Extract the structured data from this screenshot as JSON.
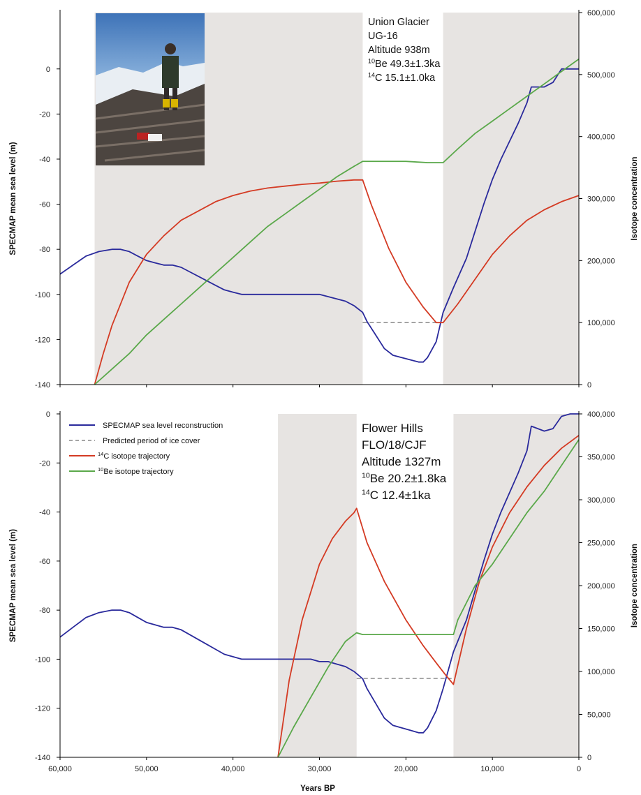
{
  "colors": {
    "sea_level": "#2a2a9c",
    "c14": "#d43b24",
    "be10": "#5aa84a",
    "ice_cover": "#888888",
    "shade": "#e7e4e2"
  },
  "photo": {
    "description_icon": "photo-icon"
  },
  "shared_x_label": "Years BP",
  "chart_data": [
    {
      "type": "line",
      "site": [
        "Union Glacier",
        "UG-16",
        "Altitude 938m"
      ],
      "be_label": "Be 49.3±1.3ka",
      "be_sup": "10",
      "c_label": "C 15.1±1.0ka",
      "c_sup": "14",
      "ylabel": "SPECMAP mean sea level (m)",
      "y2label": "Isotope concentration",
      "xlim": [
        60000,
        0
      ],
      "ylim": [
        -140,
        25
      ],
      "y2lim": [
        0,
        600000
      ],
      "xticks": [],
      "yticks": [
        "0",
        "-20",
        "-40",
        "-60",
        "-80",
        "-100",
        "-120",
        "-140"
      ],
      "ytick_values": [
        0,
        -20,
        -40,
        -60,
        -80,
        -100,
        -120,
        -140
      ],
      "y2ticks": [
        "600,000",
        "500,000",
        "400,000",
        "300,000",
        "200,000",
        "100,000",
        "0"
      ],
      "y2tick_values": [
        600000,
        500000,
        400000,
        300000,
        200000,
        100000,
        0
      ],
      "shaded": [
        [
          56000,
          25000
        ],
        [
          15700,
          0
        ]
      ],
      "ice_cover": {
        "x": [
          25000,
          15700
        ],
        "y": 100000
      },
      "series": [
        {
          "key": "sea_level",
          "axis": "left",
          "x": [
            60000,
            58500,
            57000,
            55500,
            54000,
            53000,
            52000,
            51000,
            50000,
            49000,
            48000,
            47000,
            46000,
            45000,
            44000,
            43000,
            42000,
            41000,
            40000,
            39000,
            38000,
            37000,
            36000,
            35000,
            34000,
            33000,
            32000,
            31000,
            30000,
            29000,
            28000,
            27000,
            26000,
            25000,
            24500,
            23500,
            22500,
            21500,
            20500,
            19500,
            18500,
            18000,
            17500,
            16500,
            15700,
            14500,
            13000,
            12000,
            11000,
            10000,
            9000,
            8000,
            7000,
            6000,
            5500,
            4000,
            3000,
            2000,
            1000,
            0
          ],
          "y": [
            -91,
            -87,
            -83,
            -81,
            -80,
            -80,
            -81,
            -83,
            -85,
            -86,
            -87,
            -87,
            -88,
            -90,
            -92,
            -94,
            -96,
            -98,
            -99,
            -100,
            -100,
            -100,
            -100,
            -100,
            -100,
            -100,
            -100,
            -100,
            -100,
            -101,
            -102,
            -103,
            -105,
            -108,
            -112,
            -118,
            -124,
            -127,
            -128,
            -129,
            -130,
            -130,
            -128,
            -121,
            -108,
            -97,
            -84,
            -72,
            -60,
            -49,
            -40,
            -32,
            -24,
            -15,
            -8,
            -8,
            -6,
            0,
            0,
            0
          ]
        },
        {
          "key": "c14",
          "axis": "right",
          "x": [
            56000,
            55000,
            54000,
            52000,
            50000,
            48000,
            46000,
            44000,
            42000,
            40000,
            38000,
            36000,
            34000,
            32000,
            30000,
            28000,
            26000,
            25000,
            24000,
            22000,
            20000,
            18000,
            16500,
            15700,
            14000,
            12000,
            10000,
            8000,
            6000,
            4000,
            2000,
            0
          ],
          "y": [
            0,
            50000,
            95000,
            165000,
            210000,
            240000,
            265000,
            280000,
            295000,
            305000,
            312000,
            317000,
            320000,
            323000,
            325000,
            328000,
            330000,
            330000,
            290000,
            220000,
            165000,
            125000,
            100000,
            100000,
            130000,
            170000,
            210000,
            240000,
            265000,
            282000,
            295000,
            305000
          ]
        },
        {
          "key": "be10",
          "axis": "right",
          "x": [
            56000,
            54000,
            52000,
            50000,
            48000,
            46000,
            44000,
            42000,
            40000,
            38000,
            36000,
            34000,
            32000,
            30000,
            28000,
            26000,
            25000,
            23000,
            20000,
            17500,
            15700,
            14000,
            12000,
            10000,
            8000,
            6000,
            4000,
            2000,
            0
          ],
          "y": [
            0,
            25000,
            50000,
            80000,
            105000,
            130000,
            155000,
            180000,
            205000,
            230000,
            255000,
            275000,
            295000,
            315000,
            335000,
            352000,
            360000,
            360000,
            360000,
            358000,
            358000,
            380000,
            405000,
            425000,
            445000,
            465000,
            485000,
            505000,
            525000
          ]
        }
      ]
    },
    {
      "type": "line",
      "site": [
        "Flower Hills",
        "FLO/18/CJF",
        "Altitude 1327m"
      ],
      "be_label": "Be 20.2±1.8ka",
      "be_sup": "10",
      "c_label": "C 12.4±1ka",
      "c_sup": "14",
      "ylabel": "SPECMAP mean sea level (m)",
      "y2label": "Isotope concentration",
      "xlabel": "Years BP",
      "xlim": [
        60000,
        0
      ],
      "ylim": [
        -140,
        0
      ],
      "y2lim": [
        0,
        400000
      ],
      "xticks": [
        "60,000",
        "50,000",
        "40,000",
        "30,000",
        "20,000",
        "10,000",
        "0"
      ],
      "xtick_values": [
        60000,
        50000,
        40000,
        30000,
        20000,
        10000,
        0
      ],
      "yticks": [
        "0",
        "-20",
        "-40",
        "-60",
        "-80",
        "-100",
        "-120",
        "-140"
      ],
      "ytick_values": [
        0,
        -20,
        -40,
        -60,
        -80,
        -100,
        -120,
        -140
      ],
      "y2ticks": [
        "400,000",
        "350,000",
        "300,000",
        "250,000",
        "200,000",
        "150,000",
        "100,000",
        "50,000",
        "0"
      ],
      "y2tick_values": [
        400000,
        350000,
        300000,
        250000,
        200000,
        150000,
        100000,
        50000,
        0
      ],
      "shaded": [
        [
          34800,
          25700
        ],
        [
          14500,
          0
        ]
      ],
      "ice_cover": {
        "x": [
          25700,
          14500
        ],
        "y": 92000
      },
      "legend": [
        {
          "key": "sea_level",
          "label": "SPECMAP sea level reconstruction",
          "dash": false
        },
        {
          "key": "ice_cover",
          "label": "Predicted period of ice cover",
          "dash": true
        },
        {
          "key": "c14",
          "label": "C isotope trajectory",
          "sup": "14",
          "dash": false
        },
        {
          "key": "be10",
          "label": "Be isotope trajectory",
          "sup": "10",
          "dash": false
        }
      ],
      "series": [
        {
          "key": "sea_level",
          "axis": "left",
          "x": [
            60000,
            58500,
            57000,
            55500,
            54000,
            53000,
            52000,
            51000,
            50000,
            49000,
            48000,
            47000,
            46000,
            45000,
            44000,
            43000,
            42000,
            41000,
            40000,
            39000,
            38000,
            37000,
            36000,
            35000,
            34000,
            33000,
            32000,
            31000,
            30000,
            29000,
            28000,
            27000,
            26000,
            25000,
            24500,
            23500,
            22500,
            21500,
            20500,
            19500,
            18500,
            18000,
            17500,
            16500,
            15700,
            14500,
            13000,
            12000,
            11000,
            10000,
            9000,
            8000,
            7000,
            6000,
            5500,
            4000,
            3000,
            2000,
            1000,
            0
          ],
          "y": [
            -91,
            -87,
            -83,
            -81,
            -80,
            -80,
            -81,
            -83,
            -85,
            -86,
            -87,
            -87,
            -88,
            -90,
            -92,
            -94,
            -96,
            -98,
            -99,
            -100,
            -100,
            -100,
            -100,
            -100,
            -100,
            -100,
            -100,
            -100,
            -101,
            -101,
            -102,
            -103,
            -105,
            -108,
            -112,
            -118,
            -124,
            -127,
            -128,
            -129,
            -130,
            -130,
            -128,
            -121,
            -112,
            -97,
            -84,
            -72,
            -60,
            -49,
            -40,
            -32,
            -24,
            -15,
            -5,
            -7,
            -6,
            -1,
            0,
            0
          ]
        },
        {
          "key": "c14",
          "axis": "right",
          "x": [
            34800,
            33500,
            32000,
            30000,
            28500,
            27000,
            26000,
            25700,
            24500,
            22500,
            20000,
            18000,
            16500,
            15500,
            14500,
            13000,
            11500,
            10000,
            8000,
            6000,
            4000,
            2000,
            0
          ],
          "y": [
            0,
            90000,
            160000,
            225000,
            255000,
            275000,
            285000,
            290000,
            250000,
            205000,
            160000,
            130000,
            110000,
            97000,
            85000,
            150000,
            205000,
            245000,
            285000,
            315000,
            340000,
            360000,
            375000
          ]
        },
        {
          "key": "be10",
          "axis": "right",
          "x": [
            34800,
            33000,
            31000,
            29000,
            27000,
            25700,
            25000,
            20000,
            16000,
            14500,
            14000,
            12000,
            10000,
            8000,
            6000,
            4000,
            2000,
            0
          ],
          "y": [
            0,
            35000,
            70000,
            105000,
            135000,
            145000,
            143000,
            143000,
            143000,
            143000,
            160000,
            200000,
            225000,
            255000,
            285000,
            310000,
            340000,
            370000
          ]
        }
      ]
    }
  ]
}
